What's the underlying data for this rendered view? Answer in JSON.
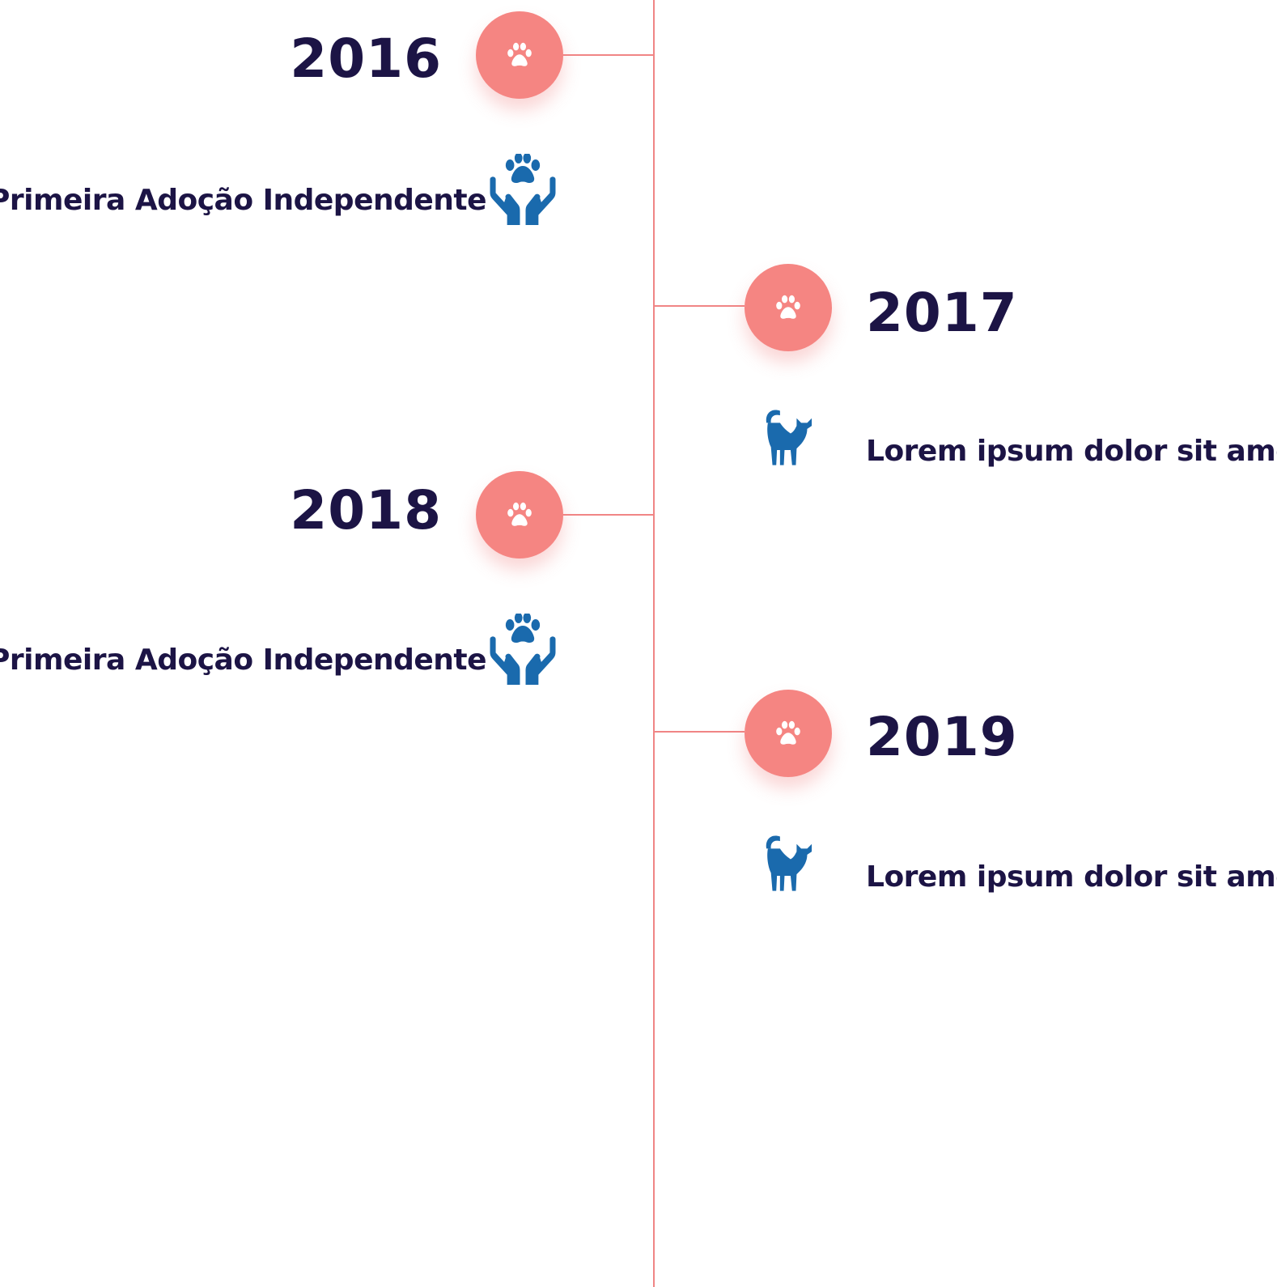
{
  "colors": {
    "accent": "#f58582",
    "line": "#f08585",
    "text": "#1c1445",
    "icon_blue": "#1a6aad",
    "white": "#ffffff"
  },
  "timeline": {
    "items": [
      {
        "year": "2016",
        "side": "left",
        "description": "Primeira Adoção Independente",
        "marker_icon": "paw-icon",
        "content_icon": "hands-paw-icon"
      },
      {
        "year": "2017",
        "side": "right",
        "description": "Lorem ipsum dolor sit amet",
        "marker_icon": "paw-icon",
        "content_icon": "cat-icon"
      },
      {
        "year": "2018",
        "side": "left",
        "description": "Primeira Adoção Independente",
        "marker_icon": "paw-icon",
        "content_icon": "hands-paw-icon"
      },
      {
        "year": "2019",
        "side": "right",
        "description": "Lorem ipsum dolor sit amet",
        "marker_icon": "paw-icon",
        "content_icon": "cat-icon"
      }
    ]
  }
}
